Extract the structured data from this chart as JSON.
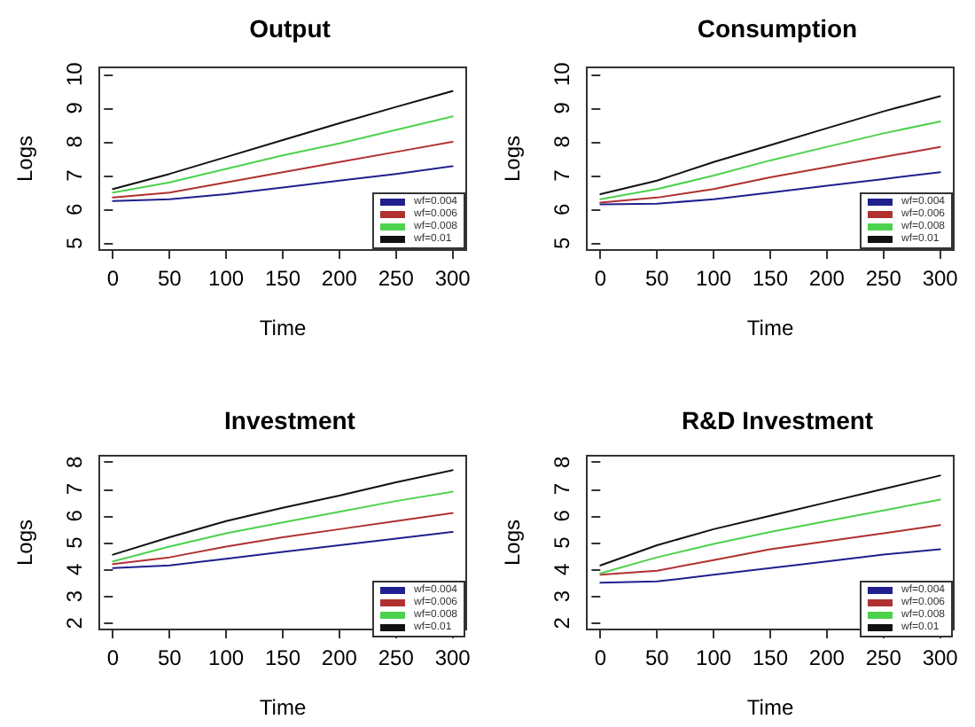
{
  "chart_data": [
    {
      "type": "line",
      "title": "Output",
      "xlabel": "Time",
      "ylabel": "Logs",
      "x": [
        0,
        50,
        100,
        150,
        200,
        250,
        300
      ],
      "xlim": [
        -12,
        312
      ],
      "xticks": [
        0,
        50,
        100,
        150,
        200,
        250,
        300
      ],
      "ylim": [
        4.8,
        10.2
      ],
      "yticks": [
        5,
        6,
        7,
        8,
        9,
        10
      ],
      "grid": false,
      "legend": "bottom right",
      "marker": "none",
      "line_style": "solid",
      "series": [
        {
          "name": "wf=0.004",
          "color": "#1f1f8f",
          "values": [
            6.25,
            6.3,
            6.45,
            6.65,
            6.85,
            7.05,
            7.28
          ]
        },
        {
          "name": "wf=0.006",
          "color": "#b03030",
          "values": [
            6.35,
            6.5,
            6.8,
            7.1,
            7.4,
            7.7,
            8.0
          ]
        },
        {
          "name": "wf=0.008",
          "color": "#4cd24c",
          "values": [
            6.5,
            6.8,
            7.2,
            7.6,
            7.95,
            8.35,
            8.75
          ]
        },
        {
          "name": "wf=0.01",
          "color": "#111111",
          "values": [
            6.6,
            7.05,
            7.55,
            8.05,
            8.55,
            9.03,
            9.5
          ]
        }
      ]
    },
    {
      "type": "line",
      "title": "Consumption",
      "xlabel": "Time",
      "ylabel": "Logs",
      "x": [
        0,
        50,
        100,
        150,
        200,
        250,
        300
      ],
      "xlim": [
        -12,
        312
      ],
      "xticks": [
        0,
        50,
        100,
        150,
        200,
        250,
        300
      ],
      "ylim": [
        4.8,
        10.2
      ],
      "yticks": [
        5,
        6,
        7,
        8,
        9,
        10
      ],
      "grid": false,
      "legend": "bottom right",
      "marker": "none",
      "line_style": "solid",
      "series": [
        {
          "name": "wf=0.004",
          "color": "#1f1f8f",
          "values": [
            6.15,
            6.17,
            6.3,
            6.5,
            6.7,
            6.9,
            7.1
          ]
        },
        {
          "name": "wf=0.006",
          "color": "#b03030",
          "values": [
            6.2,
            6.35,
            6.6,
            6.95,
            7.25,
            7.55,
            7.85
          ]
        },
        {
          "name": "wf=0.008",
          "color": "#4cd24c",
          "values": [
            6.3,
            6.6,
            7.0,
            7.45,
            7.85,
            8.25,
            8.6
          ]
        },
        {
          "name": "wf=0.01",
          "color": "#111111",
          "values": [
            6.45,
            6.85,
            7.4,
            7.9,
            8.4,
            8.9,
            9.35
          ]
        }
      ]
    },
    {
      "type": "line",
      "title": "Investment",
      "xlabel": "Time",
      "ylabel": "Logs",
      "x": [
        0,
        50,
        100,
        150,
        200,
        250,
        300
      ],
      "xlim": [
        -12,
        312
      ],
      "xticks": [
        0,
        50,
        100,
        150,
        200,
        250,
        300
      ],
      "ylim": [
        1.76,
        8.24
      ],
      "yticks": [
        2,
        3,
        4,
        5,
        6,
        7,
        8
      ],
      "grid": false,
      "legend": "bottom right",
      "marker": "none",
      "line_style": "solid",
      "series": [
        {
          "name": "wf=0.004",
          "color": "#1f1f8f",
          "values": [
            4.05,
            4.15,
            4.4,
            4.65,
            4.9,
            5.15,
            5.4
          ]
        },
        {
          "name": "wf=0.006",
          "color": "#b03030",
          "values": [
            4.2,
            4.45,
            4.85,
            5.2,
            5.5,
            5.8,
            6.1
          ]
        },
        {
          "name": "wf=0.008",
          "color": "#4cd24c",
          "values": [
            4.3,
            4.85,
            5.35,
            5.75,
            6.15,
            6.55,
            6.9
          ]
        },
        {
          "name": "wf=0.01",
          "color": "#111111",
          "values": [
            4.55,
            5.2,
            5.8,
            6.3,
            6.75,
            7.25,
            7.7
          ]
        }
      ]
    },
    {
      "type": "line",
      "title": "R&D Investment",
      "xlabel": "Time",
      "ylabel": "Logs",
      "x": [
        0,
        50,
        100,
        150,
        200,
        250,
        300
      ],
      "xlim": [
        -12,
        312
      ],
      "xticks": [
        0,
        50,
        100,
        150,
        200,
        250,
        300
      ],
      "ylim": [
        1.76,
        8.24
      ],
      "yticks": [
        2,
        3,
        4,
        5,
        6,
        7,
        8
      ],
      "grid": false,
      "legend": "bottom right",
      "marker": "none",
      "line_style": "solid",
      "series": [
        {
          "name": "wf=0.004",
          "color": "#1f1f8f",
          "values": [
            3.5,
            3.55,
            3.8,
            4.05,
            4.3,
            4.55,
            4.75
          ]
        },
        {
          "name": "wf=0.006",
          "color": "#b03030",
          "values": [
            3.8,
            3.95,
            4.35,
            4.75,
            5.05,
            5.35,
            5.65
          ]
        },
        {
          "name": "wf=0.008",
          "color": "#4cd24c",
          "values": [
            3.85,
            4.45,
            4.95,
            5.4,
            5.8,
            6.2,
            6.6
          ]
        },
        {
          "name": "wf=0.01",
          "color": "#111111",
          "values": [
            4.15,
            4.9,
            5.5,
            6.0,
            6.5,
            7.0,
            7.5
          ]
        }
      ]
    }
  ]
}
